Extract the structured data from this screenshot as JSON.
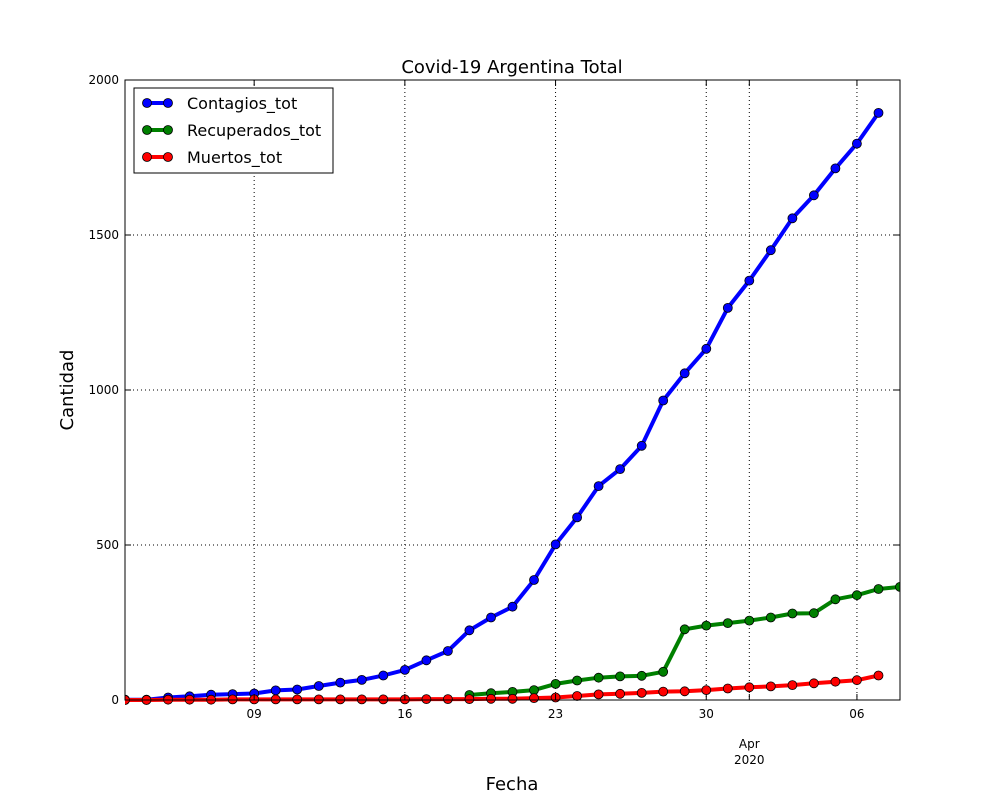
{
  "chart_data": {
    "type": "line",
    "title": "Covid-19 Argentina Total",
    "xlabel": "Fecha",
    "ylabel": "Cantidad",
    "x_start": "2020-03-03",
    "x_end": "2020-04-08",
    "xlim": [
      "2020-03-03",
      "2020-04-08"
    ],
    "ylim": [
      0,
      2000
    ],
    "grid": true,
    "legend_position": "top-left",
    "y_ticks": [
      {
        "value": 0,
        "label": "0"
      },
      {
        "value": 500,
        "label": "500"
      },
      {
        "value": 1000,
        "label": "1000"
      },
      {
        "value": 1500,
        "label": "1500"
      },
      {
        "value": 2000,
        "label": "2000"
      }
    ],
    "x_ticks": [
      {
        "date": "2020-03-09",
        "label": "09"
      },
      {
        "date": "2020-03-16",
        "label": "16"
      },
      {
        "date": "2020-03-23",
        "label": "23"
      },
      {
        "date": "2020-03-30",
        "label": "30"
      },
      {
        "date": "2020-04-01",
        "label": "Apr",
        "sublabel": "2020"
      },
      {
        "date": "2020-04-06",
        "label": "06"
      }
    ],
    "series": [
      {
        "name": "Contagios_tot",
        "color": "#0000ff",
        "start": "2020-03-03",
        "values": [
          1,
          1,
          8,
          12,
          17,
          19,
          21,
          31,
          34,
          45,
          56,
          65,
          79,
          97,
          128,
          158,
          225,
          266,
          301,
          387,
          502,
          589,
          690,
          745,
          820,
          966,
          1054,
          1133,
          1265,
          1353,
          1451,
          1554,
          1628,
          1715,
          1795,
          1894
        ]
      },
      {
        "name": "Recuperados_tot",
        "color": "#008000",
        "start": "2020-03-19",
        "values": [
          16,
          22,
          26,
          32,
          52,
          63,
          72,
          76,
          78,
          91,
          228,
          240,
          248,
          256,
          266,
          279,
          280,
          325,
          338,
          358,
          365
        ]
      },
      {
        "name": "Muertos_tot",
        "color": "#ff0000",
        "start": "2020-03-03",
        "values": [
          0,
          0,
          1,
          1,
          1,
          2,
          2,
          2,
          2,
          2,
          2,
          2,
          2,
          2,
          3,
          3,
          3,
          4,
          4,
          6,
          8,
          13,
          18,
          20,
          23,
          27,
          28,
          32,
          37,
          41,
          44,
          48,
          54,
          59,
          64,
          79
        ]
      }
    ]
  }
}
